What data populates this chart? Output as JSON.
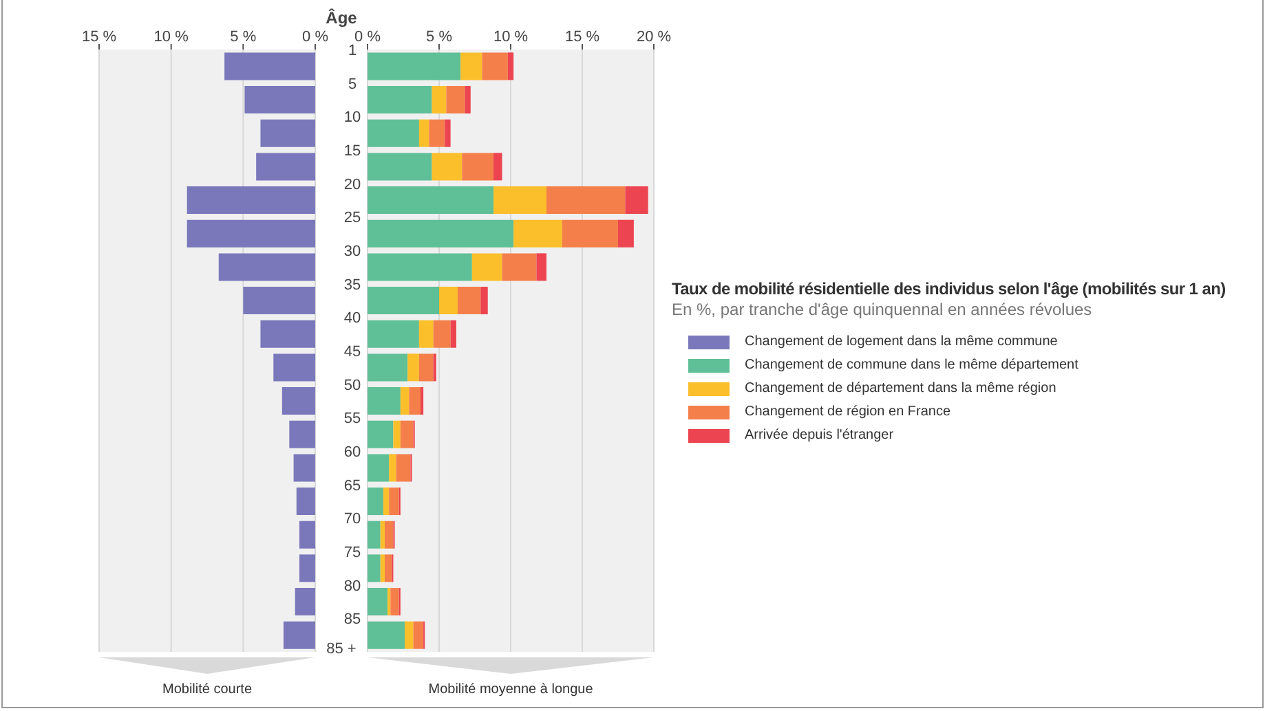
{
  "chart_data": [
    {
      "type": "bar",
      "orientation": "horizontal",
      "ylabel": "Âge",
      "xlabel": "Mobilité courte",
      "categories": [
        "1",
        "5",
        "10",
        "15",
        "20",
        "25",
        "30",
        "35",
        "40",
        "45",
        "50",
        "55",
        "60",
        "65",
        "70",
        "75",
        "80",
        "85"
      ],
      "series": [
        {
          "name": "Changement de logement dans la même commune",
          "color": "#7a78bb",
          "values": [
            6.3,
            4.9,
            3.8,
            4.1,
            8.9,
            8.9,
            6.7,
            5.0,
            3.8,
            2.9,
            2.3,
            1.8,
            1.5,
            1.3,
            1.1,
            1.1,
            1.4,
            2.2
          ]
        }
      ],
      "xlim": [
        15,
        0
      ],
      "xticks": [
        {
          "value": 15,
          "label": "15 %"
        },
        {
          "value": 10,
          "label": "10 %"
        },
        {
          "value": 5,
          "label": "5 %"
        },
        {
          "value": 0,
          "label": "0 %"
        }
      ],
      "grid": "x",
      "legend": "right",
      "annotations": [
        "85 +"
      ]
    },
    {
      "type": "bar",
      "orientation": "horizontal",
      "stacked": true,
      "title": "Taux de mobilité résidentielle des individus selon l'âge (mobilités sur 1 an)",
      "subtitle": "En %, par tranche d'âge quinquennal en années révolues",
      "xlabel": "Mobilité moyenne à longue",
      "categories": [
        "1",
        "5",
        "10",
        "15",
        "20",
        "25",
        "30",
        "35",
        "40",
        "45",
        "50",
        "55",
        "60",
        "65",
        "70",
        "75",
        "80",
        "85"
      ],
      "series": [
        {
          "name": "Changement de commune dans le même département",
          "color": "#5fbf96",
          "values": [
            6.5,
            4.5,
            3.6,
            4.5,
            8.8,
            10.2,
            7.3,
            5.0,
            3.6,
            2.8,
            2.3,
            1.8,
            1.5,
            1.1,
            0.9,
            0.9,
            1.4,
            2.6
          ]
        },
        {
          "name": "Changement de département dans la même région",
          "color": "#fbbf2c",
          "values": [
            1.5,
            1.0,
            0.7,
            2.1,
            3.7,
            3.4,
            2.1,
            1.3,
            1.0,
            0.8,
            0.6,
            0.5,
            0.5,
            0.4,
            0.3,
            0.3,
            0.2,
            0.6
          ]
        },
        {
          "name": "Changement de région en France",
          "color": "#f47f4a",
          "values": [
            1.8,
            1.3,
            1.1,
            2.2,
            5.5,
            3.9,
            2.4,
            1.6,
            1.2,
            1.0,
            0.8,
            0.9,
            1.0,
            0.7,
            0.6,
            0.5,
            0.6,
            0.7
          ]
        },
        {
          "name": "Arrivée depuis l'étranger",
          "color": "#ec4450",
          "values": [
            0.4,
            0.4,
            0.4,
            0.6,
            1.6,
            1.1,
            0.7,
            0.5,
            0.4,
            0.2,
            0.2,
            0.1,
            0.1,
            0.1,
            0.1,
            0.1,
            0.1,
            0.1
          ]
        }
      ],
      "xlim": [
        0,
        20
      ],
      "xticks": [
        {
          "value": 0,
          "label": "0 %"
        },
        {
          "value": 5,
          "label": "5 %"
        },
        {
          "value": 10,
          "label": "10 %"
        },
        {
          "value": 15,
          "label": "15 %"
        },
        {
          "value": 20,
          "label": "20 %"
        }
      ],
      "grid": "x",
      "legend": "right",
      "tick_labels": "x"
    }
  ]
}
